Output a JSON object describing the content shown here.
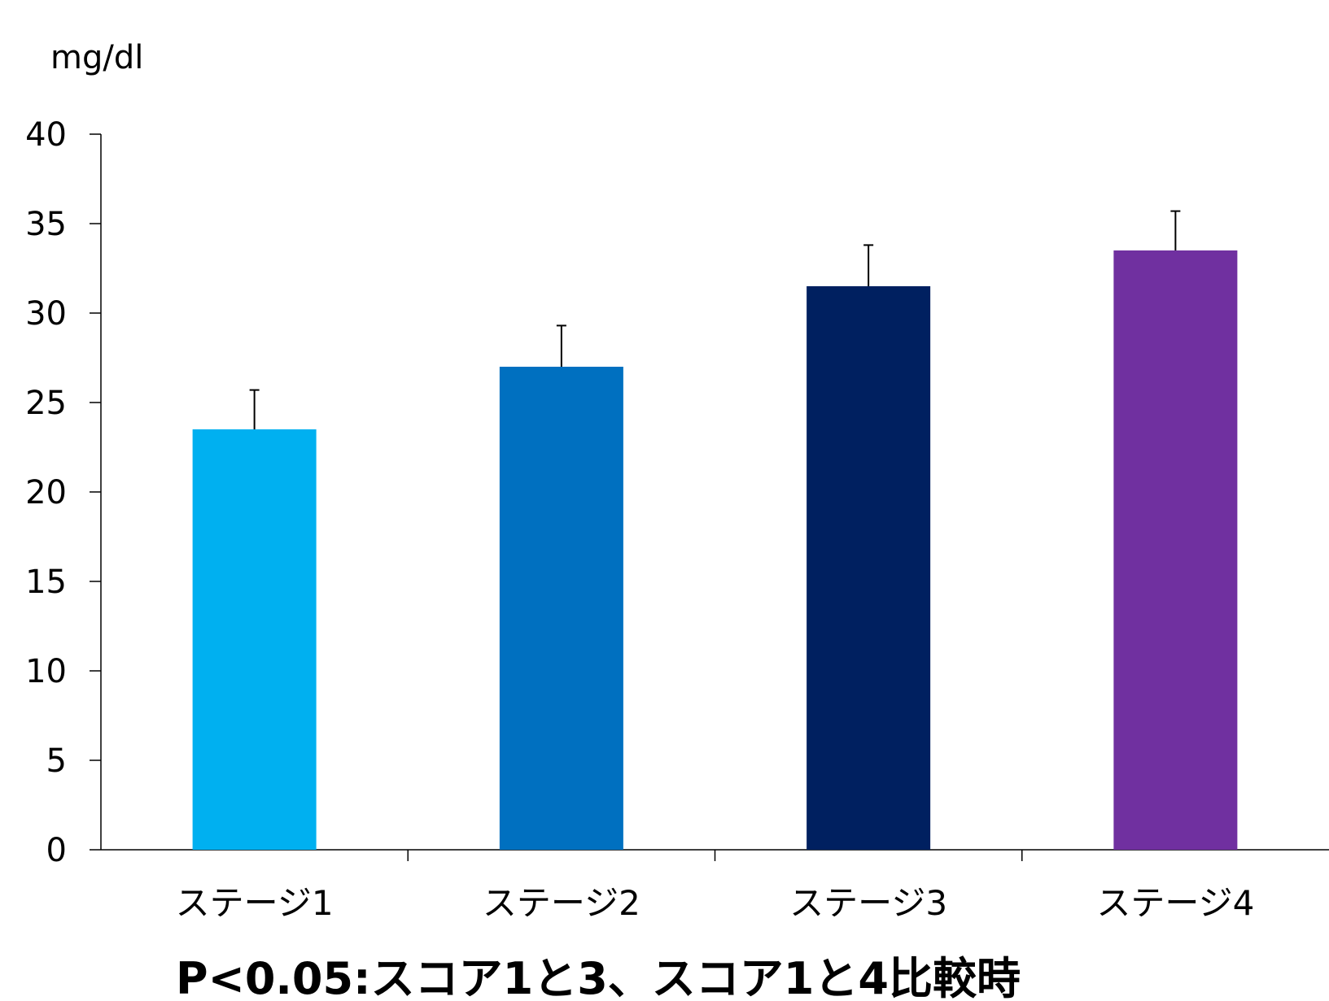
{
  "chart_data": {
    "type": "bar",
    "unit_label": "mg/dl",
    "categories": [
      "ステージ1",
      "ステージ2",
      "ステージ3",
      "ステージ4"
    ],
    "values": [
      23.5,
      27.0,
      31.5,
      33.5
    ],
    "errors": [
      2.2,
      2.3,
      2.3,
      2.2
    ],
    "colors": [
      "#00B0F0",
      "#0070C0",
      "#002060",
      "#7030A0"
    ],
    "ylim": [
      0,
      40
    ],
    "yticks": [
      0,
      5,
      10,
      15,
      20,
      25,
      30,
      35,
      40
    ],
    "grid": false,
    "legend": "none",
    "footnote": "P<0.05:スコア1と3、スコア1と4比較時"
  }
}
